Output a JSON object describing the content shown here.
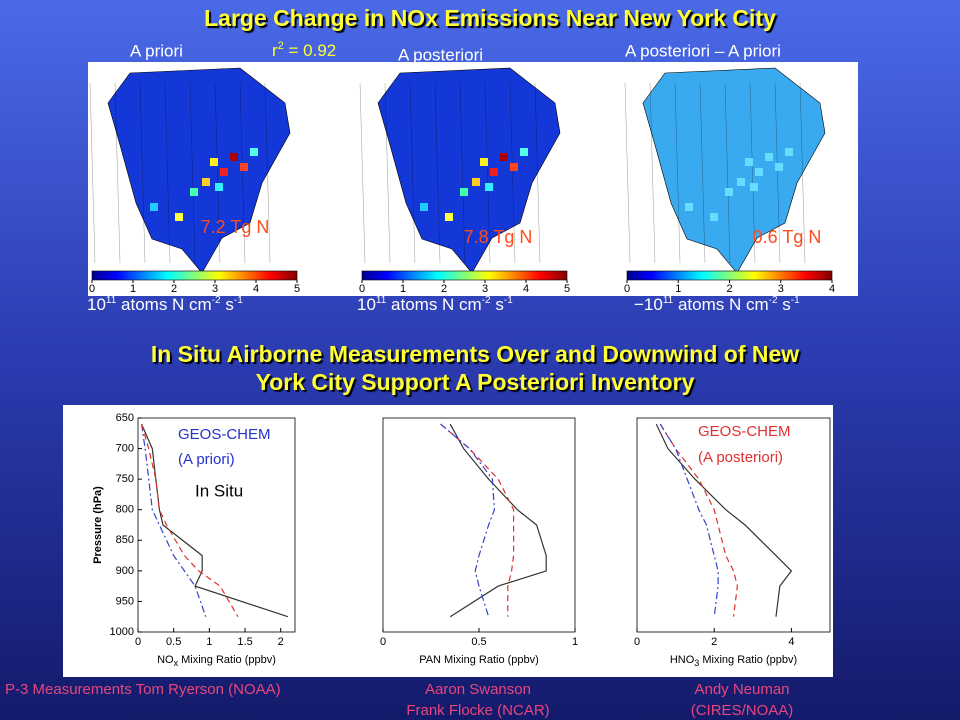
{
  "title": "Large Change in NOx Emissions Near New York City",
  "r2": [
    "r",
    "2",
    " = 0.92"
  ],
  "maps": [
    {
      "label": "A priori",
      "total": "7.2 Tg N",
      "colorbar_ticks": [
        0,
        1,
        2,
        3,
        4,
        5
      ],
      "unit": [
        "10",
        "11",
        " atoms N cm",
        "-2",
        " s",
        "-1"
      ]
    },
    {
      "label": "A posteriori",
      "total": "7.8 Tg N",
      "colorbar_ticks": [
        0,
        1,
        2,
        3,
        4,
        5
      ],
      "unit": [
        "10",
        "11",
        " atoms N cm",
        "-2",
        " s",
        "-1"
      ]
    },
    {
      "label": "A posteriori – A priori",
      "total": "0.6 Tg N",
      "colorbar_ticks": [
        0,
        1,
        2,
        3,
        4
      ],
      "unit": [
        "−10",
        "11",
        " atoms N cm",
        "-2",
        " s",
        "-1"
      ]
    }
  ],
  "subtitle": [
    "In Situ Airborne Measurements Over and Downwind of New",
    "York City Support A Posteriori Inventory"
  ],
  "chart_data": [
    {
      "type": "line",
      "ylabel": "Pressure (hPa)",
      "xlabel": [
        "NO",
        "x",
        " Mixing Ratio (ppbv)"
      ],
      "xlim": [
        0,
        2.2
      ],
      "xticks": [
        0,
        0.5,
        1,
        1.5,
        2
      ],
      "ylim": [
        1000,
        650
      ],
      "yticks": [
        650,
        700,
        750,
        800,
        850,
        900,
        950,
        1000
      ],
      "y": [
        660,
        700,
        750,
        800,
        825,
        875,
        900,
        925,
        975
      ],
      "annotations": [
        {
          "text": "GEOS-CHEM",
          "color": "#2233cc"
        },
        {
          "text": "(A priori)",
          "color": "#2233cc"
        },
        {
          "text": "In Situ",
          "color": "#000000"
        }
      ],
      "series": [
        {
          "color": "#333333",
          "dash": "solid",
          "values": [
            0.05,
            0.2,
            0.25,
            0.3,
            0.35,
            0.9,
            0.9,
            0.8,
            2.1
          ]
        },
        {
          "color": "#3344cc",
          "dash": "dashdot",
          "values": [
            0.05,
            0.1,
            0.15,
            0.2,
            0.3,
            0.5,
            0.65,
            0.8,
            0.95
          ]
        },
        {
          "color": "#e03030",
          "dash": "dashed",
          "values": [
            0.05,
            0.15,
            0.25,
            0.3,
            0.4,
            0.65,
            0.85,
            1.15,
            1.4
          ]
        }
      ]
    },
    {
      "type": "line",
      "xlabel": [
        "PAN Mixing Ratio (ppbv)"
      ],
      "xlim": [
        0,
        1
      ],
      "xticks": [
        0,
        0.5,
        1
      ],
      "ylim": [
        1000,
        650
      ],
      "y": [
        660,
        700,
        750,
        800,
        825,
        875,
        900,
        925,
        975
      ],
      "series": [
        {
          "color": "#333333",
          "dash": "solid",
          "values": [
            0.35,
            0.42,
            0.55,
            0.7,
            0.8,
            0.85,
            0.85,
            0.6,
            0.35
          ]
        },
        {
          "color": "#e03030",
          "dash": "dashed",
          "values": [
            0.3,
            0.45,
            0.6,
            0.68,
            0.68,
            0.68,
            0.67,
            0.65,
            0.65
          ]
        },
        {
          "color": "#3344cc",
          "dash": "dashdot",
          "values": [
            0.3,
            0.45,
            0.57,
            0.58,
            0.55,
            0.5,
            0.48,
            0.5,
            0.55
          ]
        }
      ]
    },
    {
      "type": "line",
      "xlabel": [
        "HNO",
        "3",
        " Mixing Ratio (ppbv)"
      ],
      "xlim": [
        0,
        5
      ],
      "xticks": [
        0,
        2,
        4
      ],
      "ylim": [
        1000,
        650
      ],
      "y": [
        660,
        700,
        750,
        800,
        825,
        875,
        900,
        925,
        975
      ],
      "annotations": [
        {
          "text": "GEOS-CHEM",
          "color": "#e03030"
        },
        {
          "text": "(A posteriori)",
          "color": "#e03030"
        }
      ],
      "series": [
        {
          "color": "#333333",
          "dash": "solid",
          "values": [
            0.5,
            0.8,
            1.5,
            2.3,
            2.8,
            3.6,
            4.0,
            3.7,
            3.6
          ]
        },
        {
          "color": "#e03030",
          "dash": "dashed",
          "values": [
            0.6,
            1.0,
            1.6,
            2.0,
            2.1,
            2.3,
            2.5,
            2.6,
            2.5
          ]
        },
        {
          "color": "#3344cc",
          "dash": "dashdot",
          "values": [
            0.6,
            1.0,
            1.3,
            1.6,
            1.8,
            2.0,
            2.1,
            2.1,
            2.0
          ]
        }
      ]
    }
  ],
  "credits": [
    "P-3 Measurements Tom Ryerson (NOAA)",
    "Aaron Swanson",
    "Frank Flocke (NCAR)",
    "Andy Neuman",
    "(CIRES/NOAA)"
  ]
}
